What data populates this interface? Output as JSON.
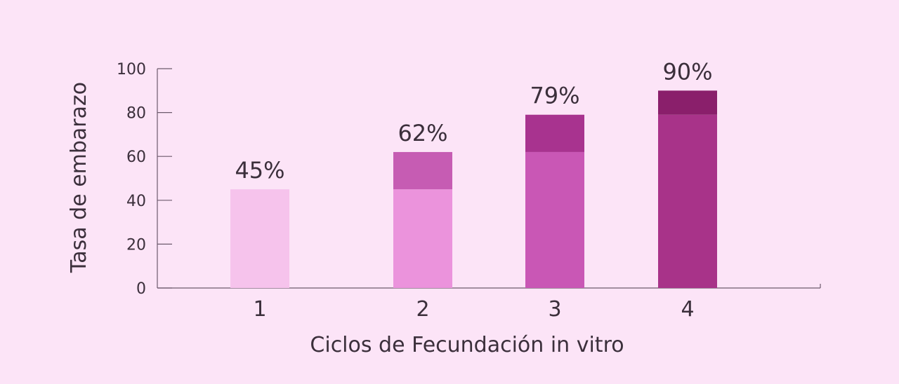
{
  "chart_data": {
    "type": "bar",
    "title": "",
    "xlabel": "Ciclos de Fecundación in vitro",
    "ylabel": "Tasa de embarazo",
    "categories": [
      "1",
      "2",
      "3",
      "4"
    ],
    "ylim": [
      0,
      100
    ],
    "yticks": [
      0,
      20,
      40,
      60,
      80,
      100
    ],
    "grid": false,
    "stacked": true,
    "totals": [
      45,
      62,
      79,
      90
    ],
    "data_labels": [
      "45%",
      "62%",
      "79%",
      "90%"
    ],
    "segments": [
      [
        {
          "from": 0,
          "to": 45,
          "color": "#f6c3ec"
        }
      ],
      [
        {
          "from": 0,
          "to": 45,
          "color": "#eb93dc"
        },
        {
          "from": 45,
          "to": 62,
          "color": "#c65cb3"
        }
      ],
      [
        {
          "from": 0,
          "to": 62,
          "color": "#c957b5"
        },
        {
          "from": 62,
          "to": 79,
          "color": "#a8338f"
        }
      ],
      [
        {
          "from": 0,
          "to": 79,
          "color": "#a83389"
        },
        {
          "from": 79,
          "to": 90,
          "color": "#8a1f6b"
        }
      ]
    ]
  },
  "colors": {
    "background": "#fce4f7",
    "axis": "#6d5a6d",
    "text": "#3b2f3b"
  }
}
